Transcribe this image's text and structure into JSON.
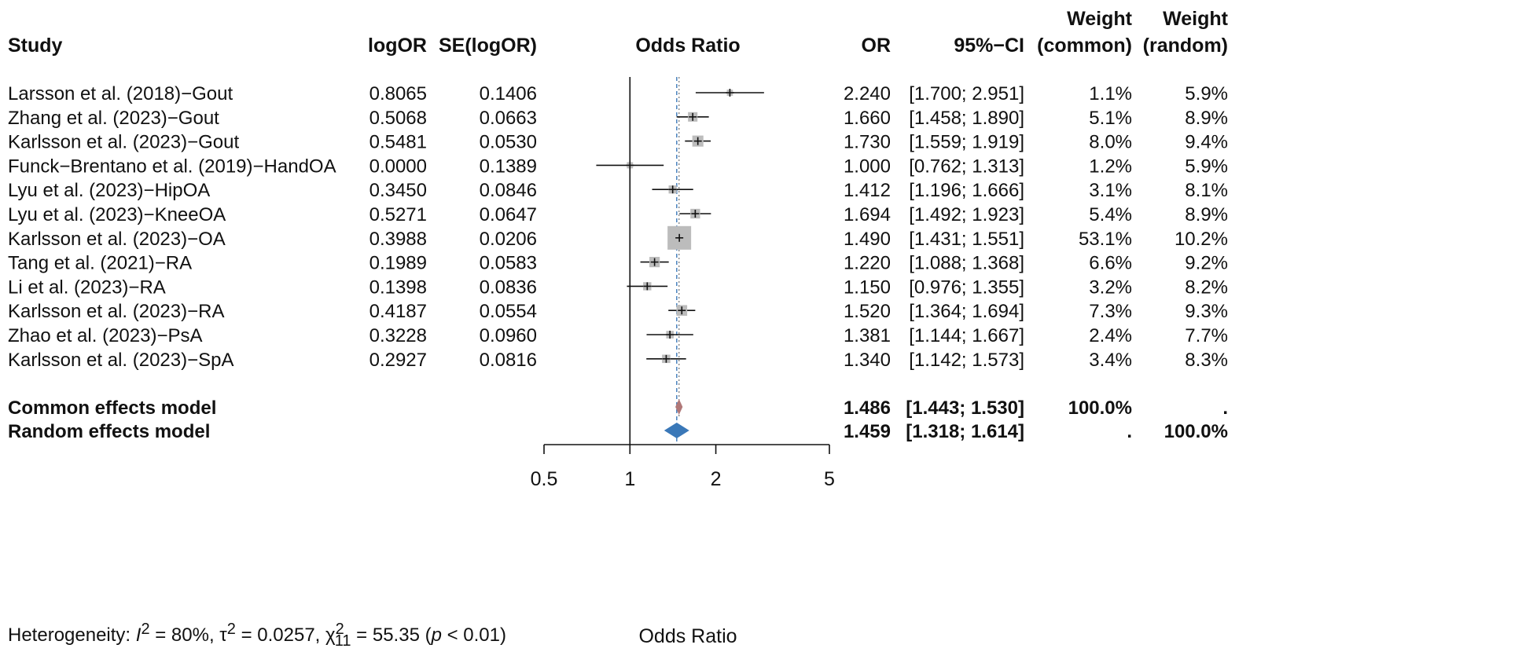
{
  "chart_data": {
    "type": "forest",
    "headers": {
      "study": "Study",
      "logor": "logOR",
      "se": "SE(logOR)",
      "plot": "Odds Ratio",
      "or": "OR",
      "ci": "95%−CI",
      "wcommon_1": "Weight",
      "wcommon_2": "(common)",
      "wrandom_1": "Weight",
      "wrandom_2": "(random)"
    },
    "studies": [
      {
        "study": "Larsson et al. (2018)−Gout",
        "logor": "0.8065",
        "se": "0.1406",
        "or": 2.24,
        "lower": 1.7,
        "upper": 2.951,
        "or_text": "2.240",
        "ci_text": "[1.700; 2.951]",
        "w_common": "1.1%",
        "w_random": "5.9%"
      },
      {
        "study": "Zhang et al. (2023)−Gout",
        "logor": "0.5068",
        "se": "0.0663",
        "or": 1.66,
        "lower": 1.458,
        "upper": 1.89,
        "or_text": "1.660",
        "ci_text": "[1.458; 1.890]",
        "w_common": "5.1%",
        "w_random": "8.9%"
      },
      {
        "study": "Karlsson et al. (2023)−Gout",
        "logor": "0.5481",
        "se": "0.0530",
        "or": 1.73,
        "lower": 1.559,
        "upper": 1.919,
        "or_text": "1.730",
        "ci_text": "[1.559; 1.919]",
        "w_common": "8.0%",
        "w_random": "9.4%"
      },
      {
        "study": "Funck−Brentano et al. (2019)−HandOA",
        "logor": "0.0000",
        "se": "0.1389",
        "or": 1.0,
        "lower": 0.762,
        "upper": 1.313,
        "or_text": "1.000",
        "ci_text": "[0.762; 1.313]",
        "w_common": "1.2%",
        "w_random": "5.9%"
      },
      {
        "study": "Lyu et al. (2023)−HipOA",
        "logor": "0.3450",
        "se": "0.0846",
        "or": 1.412,
        "lower": 1.196,
        "upper": 1.666,
        "or_text": "1.412",
        "ci_text": "[1.196; 1.666]",
        "w_common": "3.1%",
        "w_random": "8.1%"
      },
      {
        "study": "Lyu et al. (2023)−KneeOA",
        "logor": "0.5271",
        "se": "0.0647",
        "or": 1.694,
        "lower": 1.492,
        "upper": 1.923,
        "or_text": "1.694",
        "ci_text": "[1.492; 1.923]",
        "w_common": "5.4%",
        "w_random": "8.9%"
      },
      {
        "study": "Karlsson et al. (2023)−OA",
        "logor": "0.3988",
        "se": "0.0206",
        "or": 1.49,
        "lower": 1.431,
        "upper": 1.551,
        "or_text": "1.490",
        "ci_text": "[1.431; 1.551]",
        "w_common": "53.1%",
        "w_random": "10.2%"
      },
      {
        "study": "Tang et al. (2021)−RA",
        "logor": "0.1989",
        "se": "0.0583",
        "or": 1.22,
        "lower": 1.088,
        "upper": 1.368,
        "or_text": "1.220",
        "ci_text": "[1.088; 1.368]",
        "w_common": "6.6%",
        "w_random": "9.2%"
      },
      {
        "study": "Li et al. (2023)−RA",
        "logor": "0.1398",
        "se": "0.0836",
        "or": 1.15,
        "lower": 0.976,
        "upper": 1.355,
        "or_text": "1.150",
        "ci_text": "[0.976; 1.355]",
        "w_common": "3.2%",
        "w_random": "8.2%"
      },
      {
        "study": "Karlsson et al. (2023)−RA",
        "logor": "0.4187",
        "se": "0.0554",
        "or": 1.52,
        "lower": 1.364,
        "upper": 1.694,
        "or_text": "1.520",
        "ci_text": "[1.364; 1.694]",
        "w_common": "7.3%",
        "w_random": "9.3%"
      },
      {
        "study": "Zhao et al. (2023)−PsA",
        "logor": "0.3228",
        "se": "0.0960",
        "or": 1.381,
        "lower": 1.144,
        "upper": 1.667,
        "or_text": "1.381",
        "ci_text": "[1.144; 1.667]",
        "w_common": "2.4%",
        "w_random": "7.7%"
      },
      {
        "study": "Karlsson et al. (2023)−SpA",
        "logor": "0.2927",
        "se": "0.0816",
        "or": 1.34,
        "lower": 1.142,
        "upper": 1.573,
        "or_text": "1.340",
        "ci_text": "[1.142; 1.573]",
        "w_common": "3.4%",
        "w_random": "8.3%"
      }
    ],
    "models": [
      {
        "label": "Common effects model",
        "or": 1.486,
        "lower": 1.443,
        "upper": 1.53,
        "or_text": "1.486",
        "ci_text": "[1.443; 1.530]",
        "w_common": "100.0%",
        "w_random": ".",
        "color": "#b07878"
      },
      {
        "label": "Random effects model",
        "or": 1.459,
        "lower": 1.318,
        "upper": 1.614,
        "or_text": "1.459",
        "ci_text": "[1.318; 1.614]",
        "w_common": ".",
        "w_random": "100.0%",
        "color": "#3a78b8"
      }
    ],
    "x_axis": {
      "scale": "log",
      "range": [
        0.5,
        5
      ],
      "ticks": [
        0.5,
        1,
        2,
        5
      ],
      "tick_labels": [
        "0.5",
        "1",
        "2",
        "5"
      ],
      "label": "Odds Ratio",
      "null_line": 1
    },
    "colors": {
      "square": "#bcbcbc",
      "common_line": "#888888",
      "random_line": "#3a78b8"
    },
    "heterogeneity": {
      "prefix": "Heterogeneity: ",
      "i2_sym": "I",
      "i2_exp": "2",
      "i2_val": " = 80%, ",
      "tau_sym": "τ",
      "tau_exp": "2",
      "tau_val": " = 0.0257, ",
      "chi_sym": "χ",
      "chi_exp": "2",
      "chi_sub": "11",
      "chi_val": " = 55.35 (",
      "p_sym": "p",
      "p_val": " < 0.01)"
    }
  }
}
